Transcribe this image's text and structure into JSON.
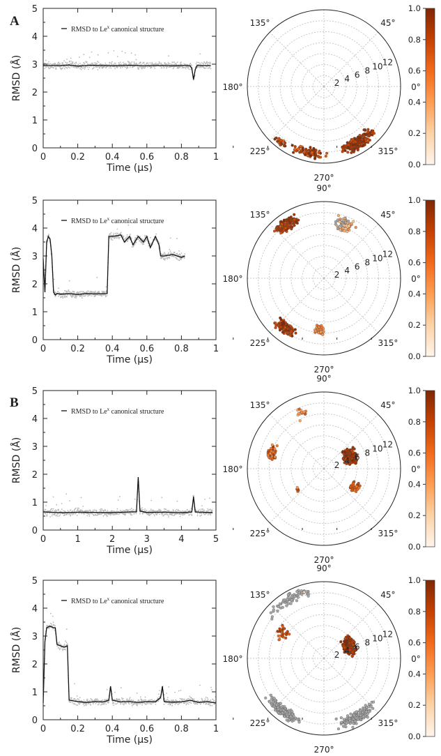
{
  "figure": {
    "panel_labels": [
      "A",
      "B"
    ]
  },
  "chart_data": [
    {
      "type": "line",
      "row": 0,
      "xlabel": "Time (µs)",
      "ylabel": "RMSD (Å)",
      "xlim": [
        0,
        1
      ],
      "ylim": [
        0,
        5
      ],
      "x_ticks": [
        "0",
        "0.2",
        "0.4",
        "0.6",
        "0.8",
        "1"
      ],
      "y_ticks": [
        "0",
        "1",
        "2",
        "3",
        "4",
        "5"
      ],
      "legend": {
        "main": "RMSD to Le",
        "sup": "x",
        "rest": " canonical structure"
      },
      "series": [
        {
          "x": [
            0,
            0.05,
            0.1,
            0.15,
            0.2,
            0.25,
            0.3,
            0.35,
            0.4,
            0.45,
            0.5,
            0.55,
            0.6,
            0.65,
            0.7,
            0.75,
            0.8,
            0.85,
            0.86,
            0.87,
            0.88,
            0.89,
            0.9,
            0.95,
            0.97
          ],
          "y": [
            2.95,
            2.95,
            2.95,
            2.97,
            2.93,
            2.95,
            2.96,
            2.95,
            2.94,
            2.95,
            2.96,
            2.95,
            2.94,
            2.95,
            2.95,
            2.94,
            2.95,
            2.95,
            2.85,
            2.45,
            2.8,
            2.95,
            2.95,
            2.95,
            2.95
          ]
        }
      ]
    },
    {
      "type": "scatter-polar",
      "row": 0,
      "angle_labels": [
        "0°",
        "45°",
        "90°",
        "135°",
        "180°",
        "225°",
        "270°",
        "315°"
      ],
      "radial_ticks": [
        "2",
        "4",
        "6",
        "8",
        "10",
        "12"
      ],
      "rmax": 14,
      "colorbar": {
        "range": [
          0,
          1
        ],
        "ticks": [
          "0.0",
          "0.2",
          "0.4",
          "0.6",
          "0.8",
          "1.0"
        ]
      },
      "clusters": [
        {
          "theta": 302,
          "r": 12.0,
          "spread_theta": 18,
          "spread_r": 1.4,
          "n": 260,
          "c": [
            0.75,
            1.0
          ]
        },
        {
          "theta": 258,
          "r": 12.3,
          "spread_theta": 22,
          "spread_r": 1.2,
          "n": 80,
          "c": [
            0.6,
            1.0
          ]
        },
        {
          "theta": 232,
          "r": 13.0,
          "spread_theta": 8,
          "spread_r": 0.8,
          "n": 25,
          "c": [
            0.6,
            1.0
          ]
        }
      ]
    },
    {
      "type": "line",
      "row": 1,
      "xlabel": "Time (µs)",
      "ylabel": "RMSD (Å)",
      "xlim": [
        0,
        1
      ],
      "ylim": [
        0,
        5
      ],
      "x_ticks": [
        "0",
        "0.2",
        "0.4",
        "0.6",
        "0.8",
        "1"
      ],
      "y_ticks": [
        "0",
        "1",
        "2",
        "3",
        "4",
        "5"
      ],
      "legend": {
        "main": "RMSD to Le",
        "sup": "x",
        "rest": " canonical structure"
      },
      "series": [
        {
          "x": [
            0,
            0.01,
            0.02,
            0.03,
            0.04,
            0.05,
            0.06,
            0.07,
            0.08,
            0.1,
            0.15,
            0.2,
            0.25,
            0.3,
            0.35,
            0.37,
            0.38,
            0.4,
            0.45,
            0.47,
            0.5,
            0.52,
            0.55,
            0.58,
            0.6,
            0.62,
            0.65,
            0.67,
            0.68,
            0.7,
            0.75,
            0.8,
            0.82
          ],
          "y": [
            2.9,
            1.7,
            3.5,
            3.7,
            3.6,
            3.0,
            1.7,
            1.6,
            1.65,
            1.63,
            1.65,
            1.62,
            1.65,
            1.64,
            1.65,
            1.65,
            3.7,
            3.7,
            3.75,
            3.5,
            3.7,
            3.4,
            3.7,
            3.5,
            3.7,
            3.3,
            3.7,
            3.4,
            3.0,
            3.0,
            3.05,
            2.95,
            3.0
          ]
        }
      ]
    },
    {
      "type": "scatter-polar",
      "row": 1,
      "angle_labels": [
        "0°",
        "45°",
        "90°",
        "135°",
        "180°",
        "225°",
        "270°",
        "315°"
      ],
      "radial_ticks": [
        "2",
        "4",
        "6",
        "8",
        "10",
        "12"
      ],
      "rmax": 14,
      "colorbar": {
        "range": [
          0,
          1
        ],
        "ticks": [
          "0.0",
          "0.2",
          "0.4",
          "0.6",
          "0.8",
          "1.0"
        ]
      },
      "clusters": [
        {
          "theta": 125,
          "r": 12.0,
          "spread_theta": 15,
          "spread_r": 1.3,
          "n": 220,
          "c": [
            0.7,
            1.0
          ]
        },
        {
          "theta": 70,
          "r": 10.5,
          "spread_theta": 14,
          "spread_r": 1.6,
          "n": 90,
          "c": [
            0.0,
            0.5
          ]
        },
        {
          "theta": 232,
          "r": 11.5,
          "spread_theta": 12,
          "spread_r": 1.3,
          "n": 150,
          "c": [
            0.7,
            1.0
          ]
        },
        {
          "theta": 265,
          "r": 9.5,
          "spread_theta": 9,
          "spread_r": 0.9,
          "n": 50,
          "c": [
            0.35,
            0.6
          ]
        }
      ]
    },
    {
      "type": "line",
      "row": 2,
      "xlabel": "Time (µs)",
      "ylabel": "RMSD (Å)",
      "xlim": [
        0,
        5
      ],
      "ylim": [
        0,
        5
      ],
      "x_ticks": [
        "0",
        "1",
        "2",
        "3",
        "4",
        "5"
      ],
      "y_ticks": [
        "0",
        "1",
        "2",
        "3",
        "4",
        "5"
      ],
      "legend": {
        "main": "RMSD to Le",
        "sup": "x",
        "rest": " canonical structure"
      },
      "series": [
        {
          "x": [
            0,
            0.5,
            1,
            1.5,
            2,
            2.5,
            2.7,
            2.75,
            2.8,
            3,
            3.5,
            4,
            4.3,
            4.35,
            4.4,
            4.5,
            4.9
          ],
          "y": [
            0.65,
            0.62,
            0.64,
            0.63,
            0.62,
            0.65,
            0.65,
            1.9,
            0.68,
            0.63,
            0.64,
            0.62,
            0.65,
            1.2,
            0.65,
            0.64,
            0.63
          ]
        }
      ]
    },
    {
      "type": "scatter-polar",
      "row": 2,
      "angle_labels": [
        "0°",
        "45°",
        "90°",
        "135°",
        "180°",
        "225°",
        "270°",
        "315°"
      ],
      "radial_ticks": [
        "2",
        "4",
        "6",
        "8",
        "10",
        "12"
      ],
      "rmax": 14,
      "colorbar": {
        "range": [
          0,
          1
        ],
        "ticks": [
          "0.0",
          "0.2",
          "0.4",
          "0.6",
          "0.8",
          "1.0"
        ]
      },
      "clusters": [
        {
          "theta": 25,
          "r": 5.2,
          "spread_theta": 22,
          "spread_r": 1.5,
          "n": 260,
          "c": [
            0.75,
            1.0
          ]
        },
        {
          "theta": 163,
          "r": 10.0,
          "spread_theta": 10,
          "spread_r": 1.5,
          "n": 45,
          "c": [
            0.4,
            0.9
          ]
        },
        {
          "theta": 330,
          "r": 6.5,
          "spread_theta": 10,
          "spread_r": 1.0,
          "n": 35,
          "c": [
            0.5,
            0.9
          ]
        },
        {
          "theta": 112,
          "r": 11.0,
          "spread_theta": 10,
          "spread_r": 2.0,
          "n": 14,
          "c": [
            0.3,
            0.7
          ]
        },
        {
          "theta": 220,
          "r": 6.0,
          "spread_theta": 8,
          "spread_r": 0.8,
          "n": 8,
          "c": [
            0.4,
            0.8
          ]
        }
      ]
    },
    {
      "type": "line",
      "row": 3,
      "xlabel": "Time (µs)",
      "ylabel": "RMSD (Å)",
      "xlim": [
        0,
        1
      ],
      "ylim": [
        0,
        5
      ],
      "x_ticks": [
        "0",
        "0.2",
        "0.4",
        "0.6",
        "0.8",
        "1"
      ],
      "y_ticks": [
        "0",
        "1",
        "2",
        "3",
        "4",
        "5"
      ],
      "legend": {
        "main": "RMSD to Le",
        "sup": "x",
        "rest": " canonical structure"
      },
      "series": [
        {
          "x": [
            0,
            0.01,
            0.02,
            0.04,
            0.06,
            0.07,
            0.08,
            0.1,
            0.12,
            0.14,
            0.15,
            0.2,
            0.25,
            0.3,
            0.35,
            0.38,
            0.39,
            0.4,
            0.45,
            0.5,
            0.55,
            0.6,
            0.65,
            0.68,
            0.69,
            0.7,
            0.75,
            0.8,
            0.85,
            0.9,
            0.95,
            1.0
          ],
          "y": [
            0.6,
            2.8,
            3.3,
            3.35,
            3.3,
            3.3,
            2.7,
            2.65,
            2.6,
            2.65,
            0.7,
            0.65,
            0.62,
            0.65,
            0.64,
            0.7,
            1.2,
            0.7,
            0.64,
            0.65,
            0.62,
            0.65,
            0.64,
            0.8,
            1.2,
            0.65,
            0.63,
            0.64,
            0.7,
            0.62,
            0.65,
            0.6
          ]
        }
      ]
    },
    {
      "type": "scatter-polar",
      "row": 3,
      "angle_labels": [
        "0°",
        "45°",
        "90°",
        "135°",
        "180°",
        "225°",
        "270°",
        "315°"
      ],
      "radial_ticks": [
        "2",
        "4",
        "6",
        "8",
        "10",
        "12"
      ],
      "rmax": 14,
      "colorbar": {
        "range": [
          0,
          1
        ],
        "ticks": [
          "0.0",
          "0.2",
          "0.4",
          "0.6",
          "0.8",
          "1.0"
        ]
      },
      "clusters": [
        {
          "theta": 25,
          "r": 5.2,
          "spread_theta": 22,
          "spread_r": 1.5,
          "n": 260,
          "c": [
            0.75,
            1.0
          ]
        },
        {
          "theta": 232,
          "r": 12.3,
          "spread_theta": 22,
          "spread_r": 1.4,
          "n": 170,
          "c": [
            0.0,
            0.15
          ]
        },
        {
          "theta": 300,
          "r": 12.3,
          "spread_theta": 24,
          "spread_r": 1.4,
          "n": 170,
          "c": [
            0.0,
            0.15
          ]
        },
        {
          "theta": 120,
          "r": 12.5,
          "spread_theta": 28,
          "spread_r": 1.2,
          "n": 70,
          "c": [
            0.0,
            0.2
          ]
        },
        {
          "theta": 150,
          "r": 9.0,
          "spread_theta": 12,
          "spread_r": 1.5,
          "n": 30,
          "c": [
            0.5,
            0.9
          ]
        }
      ]
    }
  ]
}
